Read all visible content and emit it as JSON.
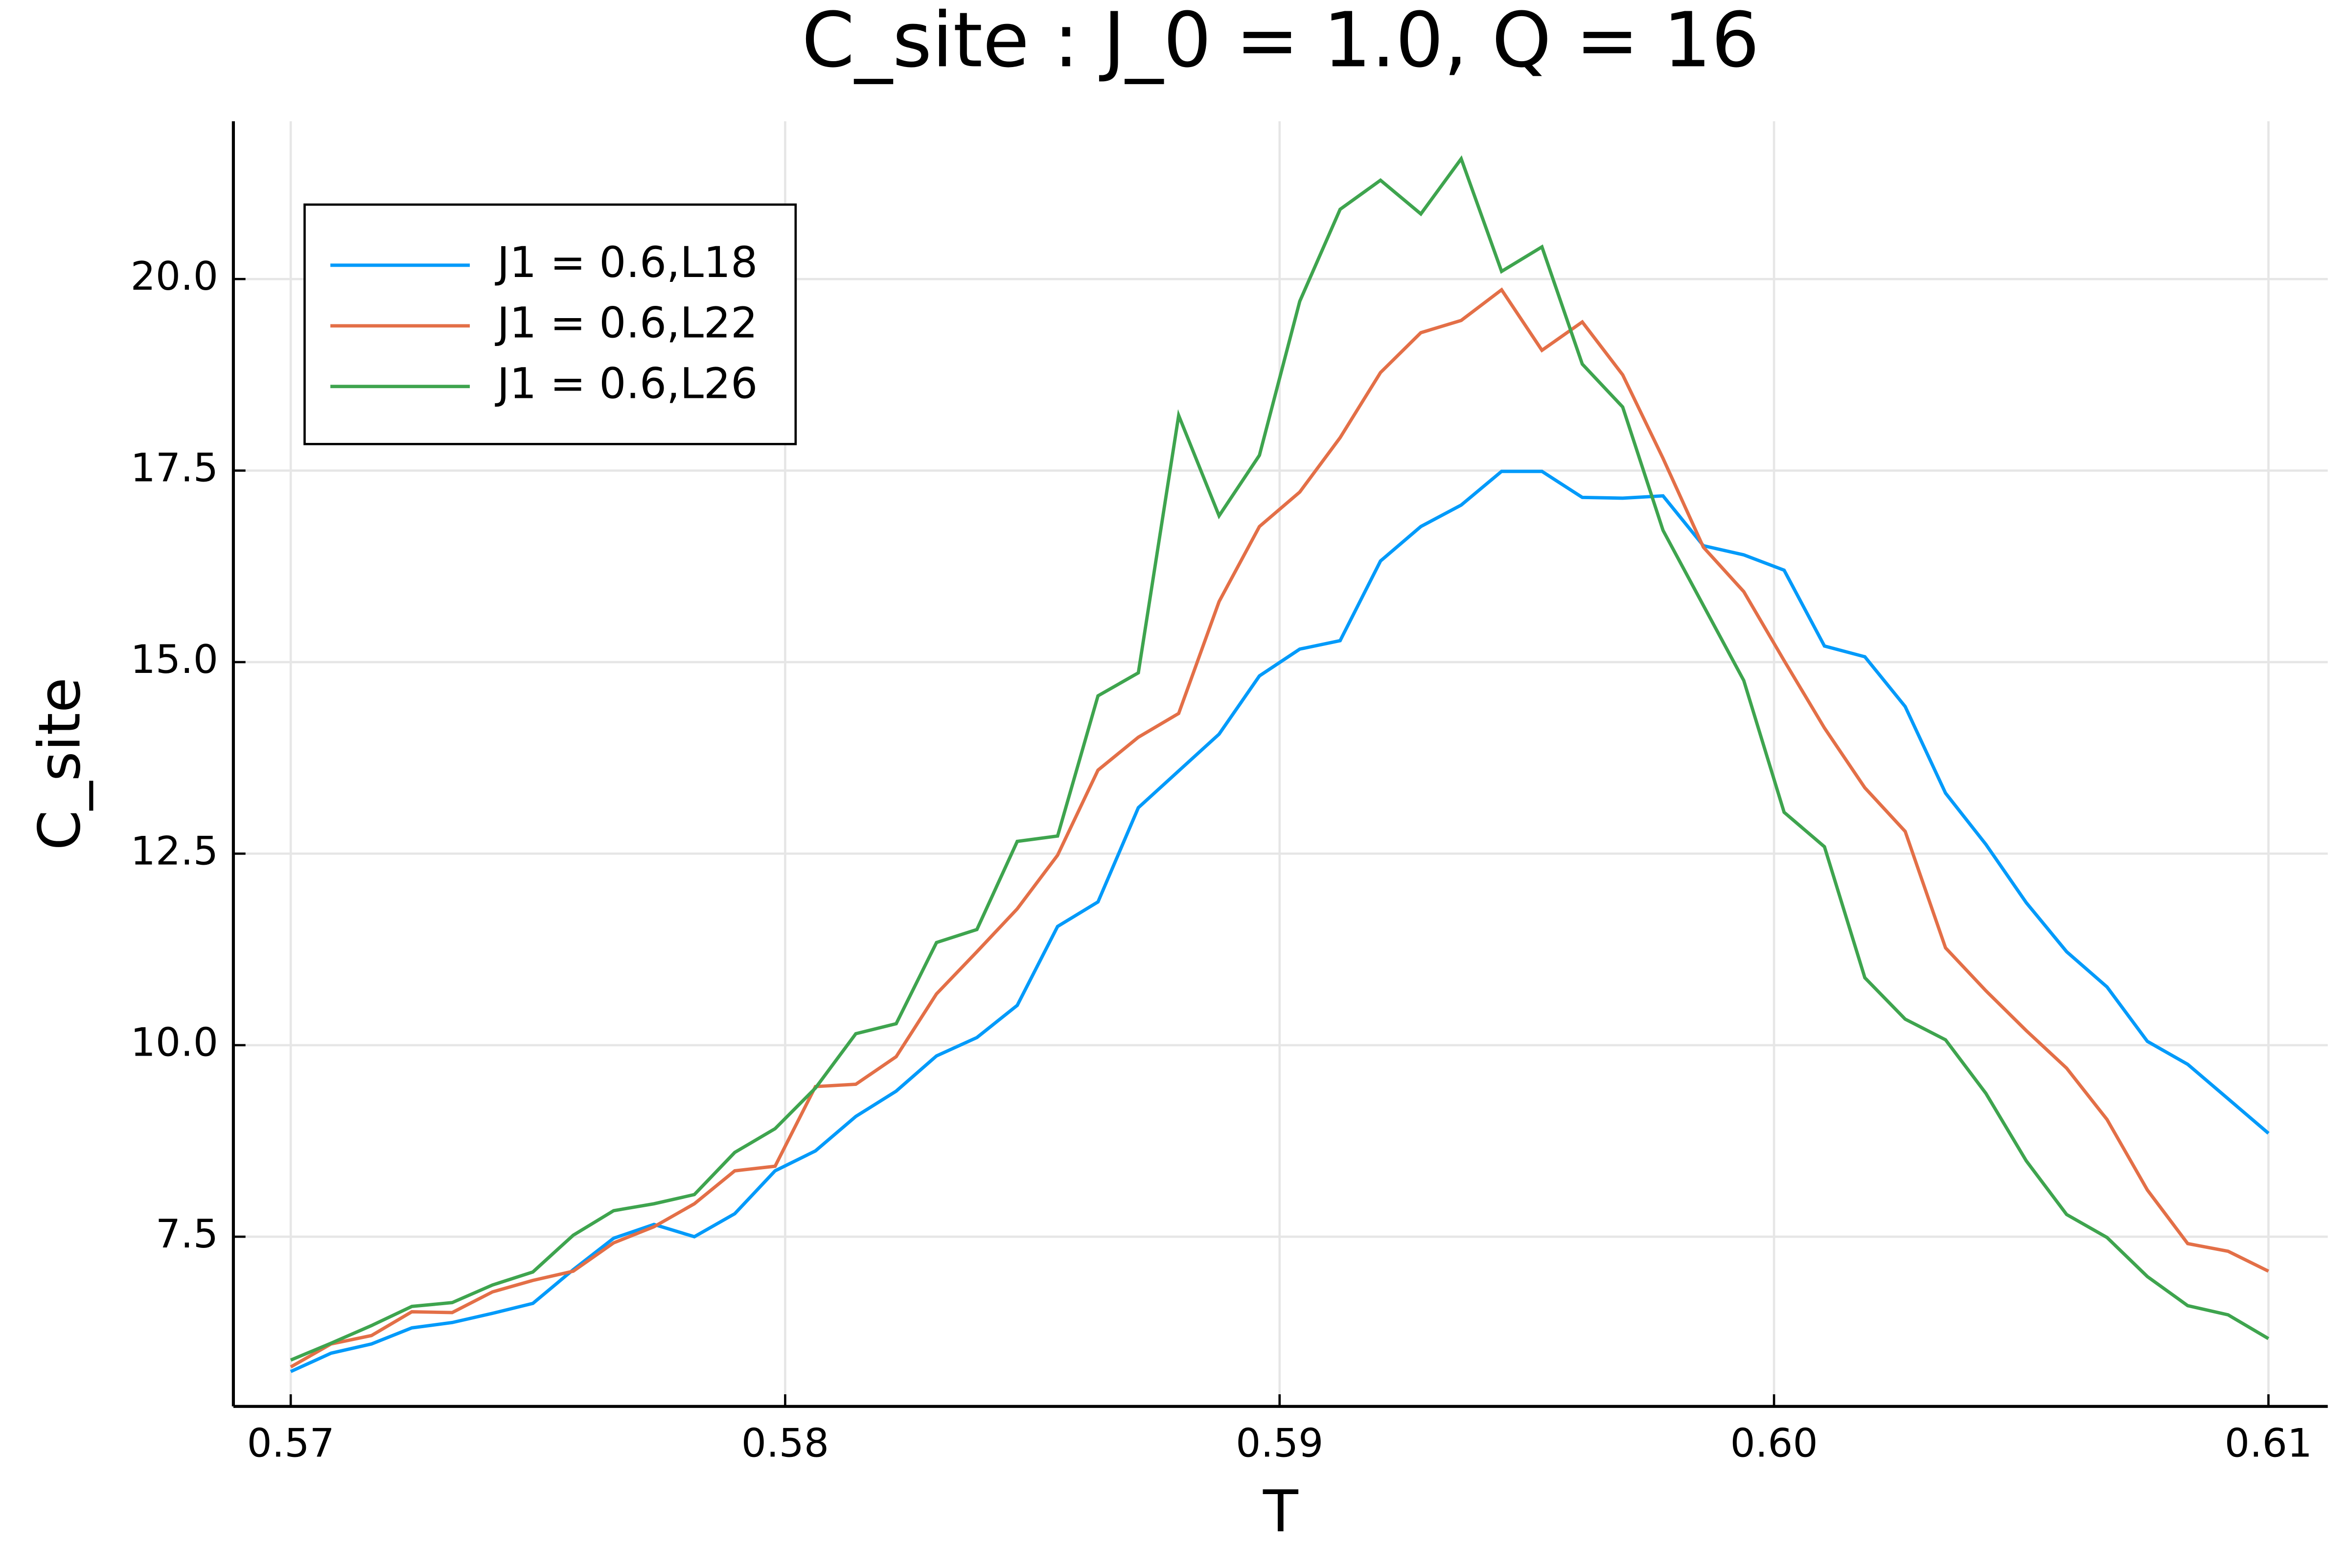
{
  "chart_data": {
    "type": "line",
    "title": "C_site : J_0 = 1.0, Q = 16",
    "xlabel": "T",
    "ylabel": "C_site",
    "x": [
      0.57,
      0.570816,
      0.571633,
      0.572449,
      0.573265,
      0.574082,
      0.574898,
      0.575714,
      0.576531,
      0.577347,
      0.578163,
      0.57898,
      0.579796,
      0.580612,
      0.581429,
      0.582245,
      0.583061,
      0.583878,
      0.584694,
      0.58551,
      0.586327,
      0.587143,
      0.587959,
      0.588776,
      0.589592,
      0.590408,
      0.591224,
      0.592041,
      0.592857,
      0.593673,
      0.59449,
      0.595306,
      0.596122,
      0.596939,
      0.597755,
      0.598571,
      0.599388,
      0.600204,
      0.60102,
      0.601837,
      0.602653,
      0.603469,
      0.604286,
      0.605102,
      0.605918,
      0.606735,
      0.607551,
      0.608367,
      0.609184,
      0.61
    ],
    "series": [
      {
        "name": "J1 = 0.6,L18",
        "color": "#009afa",
        "values": [
          5.74,
          5.98,
          6.1,
          6.31,
          6.38,
          6.5,
          6.63,
          7.07,
          7.48,
          7.66,
          7.5,
          7.8,
          8.36,
          8.62,
          9.07,
          9.4,
          9.86,
          10.1,
          10.52,
          11.55,
          11.87,
          13.1,
          13.58,
          14.06,
          14.82,
          15.17,
          15.28,
          16.32,
          16.77,
          17.05,
          17.49,
          17.49,
          17.15,
          17.14,
          17.17,
          16.52,
          16.4,
          16.2,
          15.21,
          15.07,
          14.42,
          13.29,
          12.62,
          11.86,
          11.22,
          10.76,
          10.05,
          9.75,
          9.3,
          8.85
        ]
      },
      {
        "name": "J1 = 0.6,L22",
        "color": "#e36f47",
        "values": [
          5.8,
          6.1,
          6.21,
          6.52,
          6.51,
          6.78,
          6.93,
          7.05,
          7.42,
          7.63,
          7.93,
          8.36,
          8.42,
          9.46,
          9.49,
          9.85,
          10.67,
          11.22,
          11.78,
          12.48,
          13.59,
          14.02,
          14.33,
          15.79,
          16.77,
          17.22,
          17.93,
          18.78,
          19.3,
          19.46,
          19.86,
          19.07,
          19.44,
          18.75,
          17.66,
          16.5,
          15.92,
          15.02,
          14.14,
          13.36,
          12.79,
          11.27,
          10.71,
          10.19,
          9.7,
          9.03,
          8.11,
          7.41,
          7.31,
          7.05
        ]
      },
      {
        "name": "J1 = 0.6,L26",
        "color": "#3ea44e",
        "values": [
          5.89,
          6.11,
          6.34,
          6.59,
          6.64,
          6.87,
          7.04,
          7.52,
          7.84,
          7.93,
          8.05,
          8.6,
          8.91,
          9.44,
          10.15,
          10.28,
          11.34,
          11.51,
          12.66,
          12.73,
          14.56,
          14.86,
          18.22,
          16.91,
          17.7,
          19.71,
          20.91,
          21.29,
          20.85,
          21.57,
          20.1,
          20.42,
          18.89,
          18.33,
          16.72,
          15.74,
          14.76,
          13.04,
          12.59,
          10.88,
          10.34,
          10.07,
          9.37,
          8.49,
          7.79,
          7.49,
          6.98,
          6.6,
          6.48,
          6.17
        ]
      }
    ],
    "xlim": [
      0.56884,
      0.6112
    ],
    "xticks": [
      0.57,
      0.58,
      0.59,
      {
        "value": 0.6,
        "label": "0.60"
      },
      0.61
    ],
    "ylim": [
      5.285,
      22.06
    ],
    "yticks": [
      7.5,
      {
        "value": 10,
        "label": "10.0"
      },
      12.5,
      {
        "value": 15,
        "label": "15.0"
      },
      17.5,
      {
        "value": 20,
        "label": "20.0"
      }
    ],
    "grid": true,
    "legend": "top-left"
  }
}
